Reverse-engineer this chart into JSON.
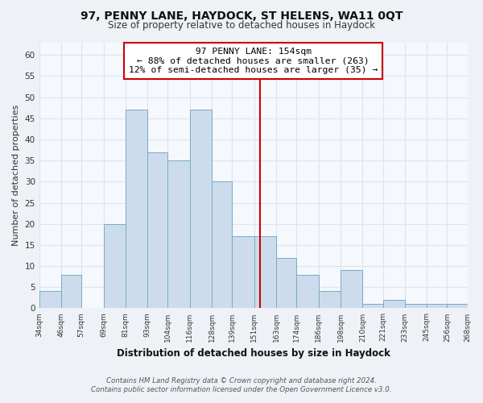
{
  "title": "97, PENNY LANE, HAYDOCK, ST HELENS, WA11 0QT",
  "subtitle": "Size of property relative to detached houses in Haydock",
  "xlabel": "Distribution of detached houses by size in Haydock",
  "ylabel": "Number of detached properties",
  "bar_left_edges": [
    34,
    46,
    57,
    69,
    81,
    93,
    104,
    116,
    128,
    139,
    151,
    163,
    174,
    186,
    198,
    210,
    221,
    233,
    245,
    256
  ],
  "bar_heights": [
    4,
    8,
    0,
    20,
    47,
    37,
    35,
    47,
    30,
    17,
    17,
    12,
    8,
    4,
    9,
    1,
    2,
    1,
    1,
    1
  ],
  "bin_labels": [
    "34sqm",
    "46sqm",
    "57sqm",
    "69sqm",
    "81sqm",
    "93sqm",
    "104sqm",
    "116sqm",
    "128sqm",
    "139sqm",
    "151sqm",
    "163sqm",
    "174sqm",
    "186sqm",
    "198sqm",
    "210sqm",
    "221sqm",
    "233sqm",
    "245sqm",
    "256sqm",
    "268sqm"
  ],
  "bar_color": "#ccdcec",
  "bar_edge_color": "#7aaac8",
  "vline_x": 154,
  "vline_color": "#cc0000",
  "annotation_title": "97 PENNY LANE: 154sqm",
  "annotation_line1": "← 88% of detached houses are smaller (263)",
  "annotation_line2": "12% of semi-detached houses are larger (35) →",
  "ylim": [
    0,
    63
  ],
  "yticks": [
    0,
    5,
    10,
    15,
    20,
    25,
    30,
    35,
    40,
    45,
    50,
    55,
    60
  ],
  "footer_line1": "Contains HM Land Registry data © Crown copyright and database right 2024.",
  "footer_line2": "Contains public sector information licensed under the Open Government Licence v3.0.",
  "bg_color": "#eef2f7",
  "plot_bg_color": "#f5f8fc",
  "grid_color": "#dde5ef"
}
